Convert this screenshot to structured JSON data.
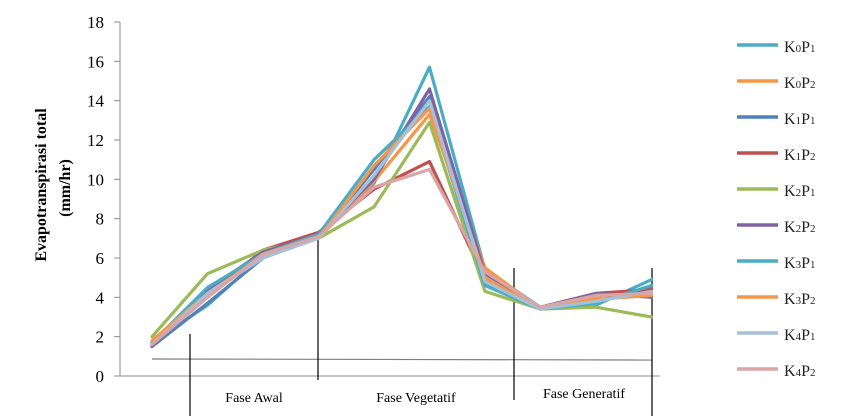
{
  "chart_data": {
    "type": "line",
    "ylabel": [
      "Evapotranspirasi  total",
      "(mm/hr)"
    ],
    "ylim": [
      0,
      18
    ],
    "y_ticks": [
      0,
      2,
      4,
      6,
      8,
      10,
      12,
      14,
      16,
      18
    ],
    "x": [
      1,
      2,
      3,
      4,
      5,
      6,
      7,
      8,
      9,
      10
    ],
    "phase_labels": [
      "Fase Awal",
      "Fase Vegetatif",
      "Fase Generatif"
    ],
    "grid": false,
    "legend_position": "right",
    "series": [
      {
        "name": "K0P1",
        "label": {
          "K": "K",
          "k_sub": "0",
          "P": "P",
          "p_sub": "1"
        },
        "color": "#4bacc6",
        "values": [
          1.7,
          3.6,
          6.1,
          7.2,
          9.8,
          15.7,
          5.4,
          3.5,
          3.6,
          4.9
        ]
      },
      {
        "name": "K0P2",
        "label": {
          "K": "K",
          "k_sub": "0",
          "P": "P",
          "p_sub": "2"
        },
        "color": "#f79646",
        "values": [
          1.6,
          4.0,
          6.2,
          7.0,
          9.9,
          13.3,
          5.5,
          3.4,
          4.0,
          4.2
        ]
      },
      {
        "name": "K1P1",
        "label": {
          "K": "K",
          "k_sub": "1",
          "P": "P",
          "p_sub": "1"
        },
        "color": "#4f81bd",
        "values": [
          1.5,
          3.7,
          6.0,
          7.1,
          10.5,
          14.2,
          4.7,
          3.4,
          3.8,
          4.5
        ]
      },
      {
        "name": "K1P2",
        "label": {
          "K": "K",
          "k_sub": "1",
          "P": "P",
          "p_sub": "2"
        },
        "color": "#c0504d",
        "values": [
          1.6,
          4.1,
          6.4,
          7.3,
          9.5,
          10.9,
          4.9,
          3.5,
          4.2,
          4.4
        ]
      },
      {
        "name": "K2P1",
        "label": {
          "K": "K",
          "k_sub": "2",
          "P": "P",
          "p_sub": "1"
        },
        "color": "#9bbb59",
        "values": [
          2.0,
          5.2,
          6.4,
          7.0,
          8.6,
          12.9,
          4.3,
          3.4,
          3.5,
          3.0
        ]
      },
      {
        "name": "K2P2",
        "label": {
          "K": "K",
          "k_sub": "2",
          "P": "P",
          "p_sub": "2"
        },
        "color": "#8064a2",
        "values": [
          1.5,
          4.4,
          6.3,
          7.2,
          10.0,
          14.6,
          5.2,
          3.5,
          4.2,
          4.0
        ]
      },
      {
        "name": "K3P1",
        "label": {
          "K": "K",
          "k_sub": "3",
          "P": "P",
          "p_sub": "1"
        },
        "color": "#4bacc6",
        "values": [
          1.7,
          4.5,
          6.2,
          7.2,
          11.0,
          13.7,
          4.6,
          3.4,
          3.7,
          4.6
        ]
      },
      {
        "name": "K3P2",
        "label": {
          "K": "K",
          "k_sub": "3",
          "P": "P",
          "p_sub": "2"
        },
        "color": "#f79646",
        "values": [
          1.8,
          4.2,
          6.1,
          7.0,
          10.7,
          13.6,
          5.0,
          3.4,
          3.9,
          4.1
        ]
      },
      {
        "name": "K4P1",
        "label": {
          "K": "K",
          "k_sub": "4",
          "P": "P",
          "p_sub": "1"
        },
        "color": "#a5c0d8",
        "values": [
          1.6,
          4.2,
          6.0,
          7.0,
          10.2,
          14.0,
          4.8,
          3.4,
          3.8,
          4.3
        ]
      },
      {
        "name": "K4P2",
        "label": {
          "K": "K",
          "k_sub": "4",
          "P": "P",
          "p_sub": "2"
        },
        "color": "#d9a5a5",
        "values": [
          1.6,
          4.0,
          6.2,
          7.1,
          9.6,
          10.5,
          5.3,
          3.5,
          4.1,
          4.2
        ]
      }
    ]
  },
  "colors": {
    "axis": "#8c8c8c",
    "phase_line": "#000000",
    "baseline": "#7f7f7f"
  }
}
